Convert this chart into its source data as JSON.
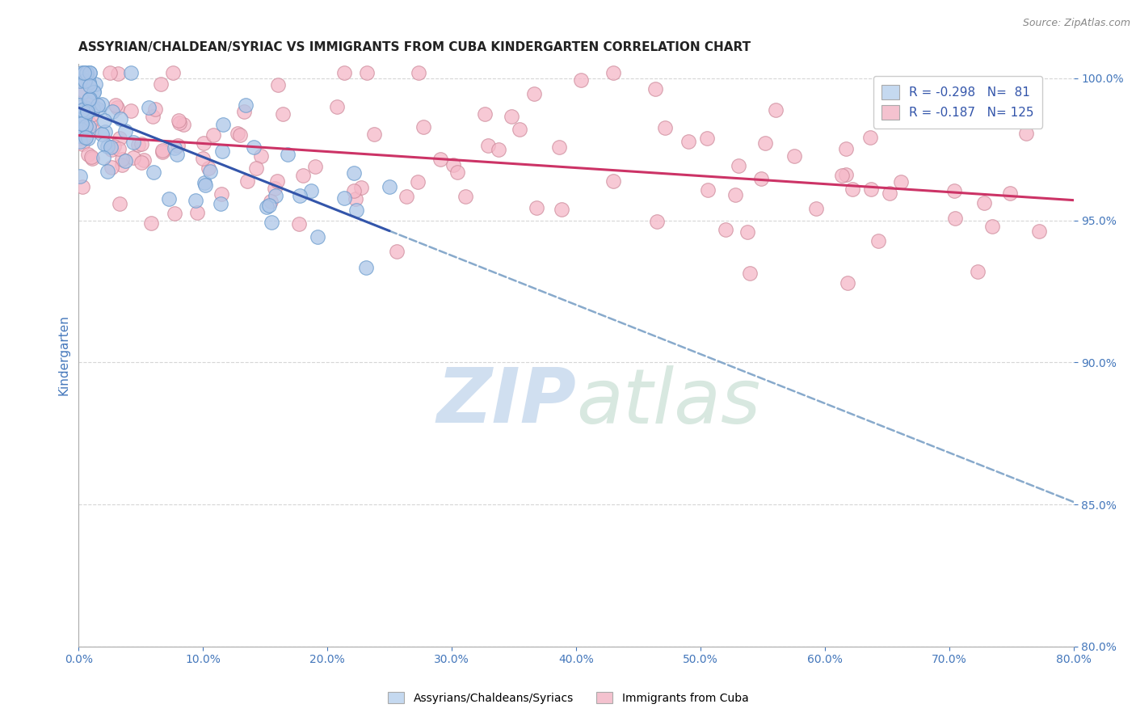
{
  "title": "ASSYRIAN/CHALDEAN/SYRIAC VS IMMIGRANTS FROM CUBA KINDERGARTEN CORRELATION CHART",
  "source": "Source: ZipAtlas.com",
  "ylabel": "Kindergarten",
  "xmin": 0.0,
  "xmax": 80.0,
  "ymin": 80.0,
  "ymax": 100.5,
  "yticks": [
    80.0,
    85.0,
    90.0,
    95.0,
    100.0
  ],
  "xticks": [
    0.0,
    10.0,
    20.0,
    30.0,
    40.0,
    50.0,
    60.0,
    70.0,
    80.0
  ],
  "blue_R": -0.298,
  "blue_N": 81,
  "pink_R": -0.187,
  "pink_N": 125,
  "blue_color": "#adc6e8",
  "blue_edge_color": "#6699cc",
  "blue_line_color": "#3355aa",
  "pink_color": "#f5b8c8",
  "pink_edge_color": "#cc8899",
  "pink_line_color": "#cc3366",
  "dashed_line_color": "#88aacc",
  "legend_box_blue": "#c5d9f0",
  "legend_box_pink": "#f4c2cf",
  "watermark_color": "#d0dff0",
  "title_color": "#222222",
  "source_color": "#888888",
  "ylabel_color": "#4477bb",
  "tick_color": "#4477bb",
  "grid_color": "#cccccc"
}
